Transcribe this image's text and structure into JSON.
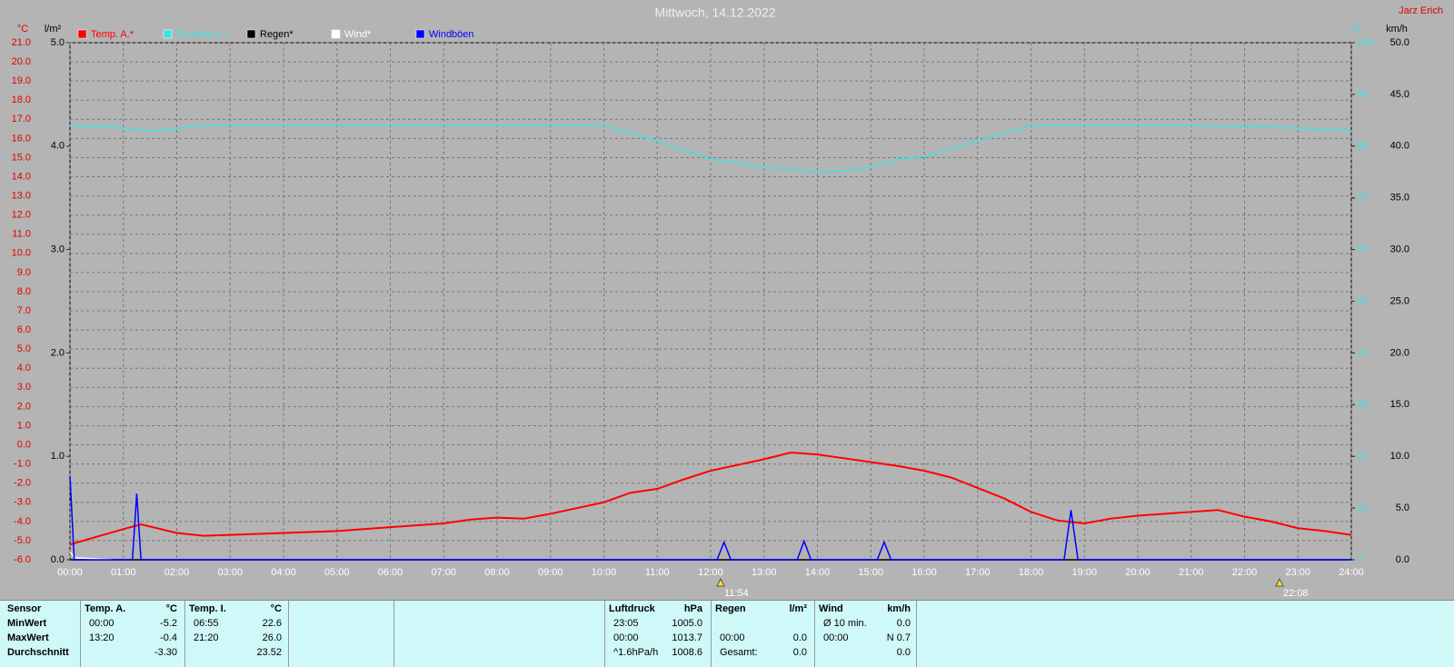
{
  "title": "Mittwoch, 14.12.2022",
  "author": "Jarz Erich",
  "chart_data": {
    "type": "line",
    "axis_labels": {
      "y": "°C",
      "y2": "l/m²",
      "y3": "%",
      "y4": "km/h"
    },
    "xlim": [
      0,
      24
    ],
    "xticks": [
      {
        "value": 0,
        "label": "00:00"
      },
      {
        "value": 1,
        "label": "01:00"
      },
      {
        "value": 2,
        "label": "02:00"
      },
      {
        "value": 3,
        "label": "03:00"
      },
      {
        "value": 4,
        "label": "04:00"
      },
      {
        "value": 5,
        "label": "05:00"
      },
      {
        "value": 6,
        "label": "06:00"
      },
      {
        "value": 7,
        "label": "07:00"
      },
      {
        "value": 8,
        "label": "08:00"
      },
      {
        "value": 9,
        "label": "09:00"
      },
      {
        "value": 10,
        "label": "10:00"
      },
      {
        "value": 11,
        "label": "11:00"
      },
      {
        "value": 12,
        "label": "12:00"
      },
      {
        "value": 13,
        "label": "13:00"
      },
      {
        "value": 14,
        "label": "14:00"
      },
      {
        "value": 15,
        "label": "15:00"
      },
      {
        "value": 16,
        "label": "16:00"
      },
      {
        "value": 17,
        "label": "17:00"
      },
      {
        "value": 18,
        "label": "18:00"
      },
      {
        "value": 19,
        "label": "19:00"
      },
      {
        "value": 20,
        "label": "20:00"
      },
      {
        "value": 21,
        "label": "21:00"
      },
      {
        "value": 22,
        "label": "22:00"
      },
      {
        "value": 23,
        "label": "23:00"
      },
      {
        "value": 24,
        "label": "24:00"
      }
    ],
    "ylim": [
      -6,
      21
    ],
    "yticks": [
      {
        "value": -6,
        "label": "-6.0"
      },
      {
        "value": -5,
        "label": "-5.0"
      },
      {
        "value": -4,
        "label": "-4.0"
      },
      {
        "value": -3,
        "label": "-3.0"
      },
      {
        "value": -2,
        "label": "-2.0"
      },
      {
        "value": -1,
        "label": "-1.0"
      },
      {
        "value": 0,
        "label": "0.0"
      },
      {
        "value": 1,
        "label": "1.0"
      },
      {
        "value": 2,
        "label": "2.0"
      },
      {
        "value": 3,
        "label": "3.0"
      },
      {
        "value": 4,
        "label": "4.0"
      },
      {
        "value": 5,
        "label": "5.0"
      },
      {
        "value": 6,
        "label": "6.0"
      },
      {
        "value": 7,
        "label": "7.0"
      },
      {
        "value": 8,
        "label": "8.0"
      },
      {
        "value": 9,
        "label": "9.0"
      },
      {
        "value": 10,
        "label": "10.0"
      },
      {
        "value": 11,
        "label": "11.0"
      },
      {
        "value": 12,
        "label": "12.0"
      },
      {
        "value": 13,
        "label": "13.0"
      },
      {
        "value": 14,
        "label": "14.0"
      },
      {
        "value": 15,
        "label": "15.0"
      },
      {
        "value": 16,
        "label": "16.0"
      },
      {
        "value": 17,
        "label": "17.0"
      },
      {
        "value": 18,
        "label": "18.0"
      },
      {
        "value": 19,
        "label": "19.0"
      },
      {
        "value": 20,
        "label": "20.0"
      },
      {
        "value": 21,
        "label": "21.0"
      }
    ],
    "y2lim": [
      0,
      5
    ],
    "y2ticks": [
      {
        "value": 0,
        "label": "0.0"
      },
      {
        "value": 1,
        "label": "1.0"
      },
      {
        "value": 2,
        "label": "2.0"
      },
      {
        "value": 3,
        "label": "3.0"
      },
      {
        "value": 4,
        "label": "4.0"
      },
      {
        "value": 5,
        "label": "5.0"
      }
    ],
    "y3lim": [
      0,
      100
    ],
    "y3ticks": [
      0,
      10,
      20,
      30,
      40,
      50,
      60,
      70,
      80,
      90,
      100
    ],
    "y4lim": [
      0,
      50
    ],
    "y4ticks": [
      {
        "value": 0,
        "label": "0.0"
      },
      {
        "value": 5,
        "label": "5.0"
      },
      {
        "value": 10,
        "label": "10.0"
      },
      {
        "value": 15,
        "label": "15.0"
      },
      {
        "value": 20,
        "label": "20.0"
      },
      {
        "value": 25,
        "label": "25.0"
      },
      {
        "value": 30,
        "label": "30.0"
      },
      {
        "value": 35,
        "label": "35.0"
      },
      {
        "value": 40,
        "label": "40.0"
      },
      {
        "value": 45,
        "label": "45.0"
      },
      {
        "value": 50,
        "label": "50.0"
      }
    ],
    "grid": true,
    "series": [
      {
        "name": "Temp. A.*",
        "color": "#ff0000",
        "axis": "y",
        "x": [
          0,
          1,
          1.33,
          2,
          2.5,
          3,
          4,
          5,
          6,
          7,
          7.5,
          8,
          8.5,
          9,
          10,
          10.5,
          11,
          11.5,
          12,
          12.5,
          13,
          13.5,
          14,
          14.5,
          15,
          15.5,
          16,
          16.5,
          17,
          17.5,
          18,
          18.5,
          19,
          19.5,
          20,
          20.5,
          21,
          21.5,
          22,
          22.5,
          23,
          23.5,
          24
        ],
        "values": [
          -5.2,
          -4.4,
          -4.15,
          -4.6,
          -4.75,
          -4.7,
          -4.6,
          -4.5,
          -4.3,
          -4.1,
          -3.9,
          -3.8,
          -3.85,
          -3.6,
          -3.0,
          -2.5,
          -2.3,
          -1.8,
          -1.35,
          -1.05,
          -0.75,
          -0.4,
          -0.5,
          -0.7,
          -0.9,
          -1.1,
          -1.35,
          -1.7,
          -2.25,
          -2.8,
          -3.5,
          -3.95,
          -4.1,
          -3.85,
          -3.7,
          -3.6,
          -3.5,
          -3.4,
          -3.75,
          -4.0,
          -4.35,
          -4.5,
          -4.7
        ]
      },
      {
        "name": "Feuchte A.*",
        "color": "#40e0e0",
        "axis": "y3",
        "x": [
          0,
          1,
          1.5,
          2.5,
          4,
          6,
          8,
          10,
          11,
          12,
          13,
          14,
          14.5,
          15,
          15.5,
          16,
          17,
          18,
          19,
          21,
          23,
          24
        ],
        "values": [
          84,
          83.5,
          82.8,
          84,
          84,
          84,
          84,
          84,
          81,
          77.5,
          76,
          75,
          75.2,
          76,
          77.5,
          78,
          81,
          84,
          84,
          84,
          83.5,
          83
        ]
      },
      {
        "name": "Regen*",
        "color": "#000000",
        "axis": "y2",
        "x": [
          0,
          24
        ],
        "values": [
          0,
          0
        ]
      },
      {
        "name": "Wind*",
        "color": "#ffffff",
        "axis": "y4",
        "x": [
          0,
          0.1,
          0.8
        ],
        "values": [
          0.7,
          0.2,
          0
        ]
      },
      {
        "name": "Windböen",
        "color": "#0000ff",
        "axis": "y4",
        "x": [
          0,
          0.08,
          1.17,
          1.25,
          1.33,
          12.12,
          12.25,
          12.38,
          13.62,
          13.75,
          13.88,
          15.12,
          15.25,
          15.38,
          18.62,
          18.75,
          18.88,
          24
        ],
        "values": [
          8.1,
          0,
          0,
          6.4,
          0,
          0,
          1.7,
          0,
          0,
          1.8,
          0,
          0,
          1.7,
          0,
          0,
          4.8,
          0,
          0
        ]
      }
    ],
    "annotations": [
      "11:54",
      "22:08"
    ]
  },
  "table": {
    "row_labels": {
      "header": "Sensor",
      "min": "MinWert",
      "max": "MaxWert",
      "avg": "Durchschnitt"
    },
    "groups": [
      {
        "name": "Temp. A.",
        "unit": "°C",
        "min": {
          "time": "00:00",
          "value": "-5.2"
        },
        "max": {
          "time": "13:20",
          "value": "-0.4"
        },
        "avg": {
          "value": "-3.30"
        }
      },
      {
        "name": "Temp. I.",
        "unit": "°C",
        "min": {
          "time": "06:55",
          "value": "22.6"
        },
        "max": {
          "time": "21:20",
          "value": "26.0"
        },
        "avg": {
          "value": "23.52"
        }
      },
      {
        "name": "Luftdruck",
        "unit": "hPa",
        "min": {
          "time": "23:05",
          "value": "1005.0"
        },
        "max": {
          "time": "00:00",
          "value": "1013.7"
        },
        "avg": {
          "time": "^1.6hPa/h",
          "value": "1008.6"
        }
      },
      {
        "name": "Regen",
        "unit": "l/m²",
        "max": {
          "time": "00:00",
          "value": "0.0"
        },
        "avg": {
          "time": "Gesamt:",
          "value": "0.0"
        }
      },
      {
        "name": "Wind",
        "unit": "km/h",
        "min": {
          "time": "Ø 10 min.",
          "value": "0.0"
        },
        "max": {
          "time": "00:00",
          "value": "N 0.7"
        },
        "avg": {
          "value": "0.0"
        }
      }
    ]
  }
}
